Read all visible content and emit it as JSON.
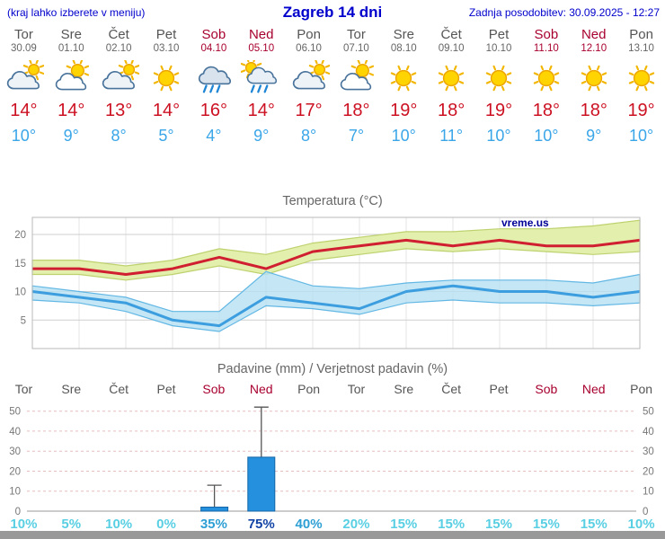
{
  "header": {
    "left_note": "(kraj lahko izberete v meniju)",
    "title": "Zagreb 14 dni",
    "updated": "Zadnja posodobitev: 30.09.2025 - 12:27"
  },
  "colors": {
    "header_blue": "#0000cc",
    "weekend_red": "#a8002e",
    "weekday_gray": "#555555",
    "tmax_red": "#cc1122",
    "tmin_blue": "#3aa6e8",
    "bar_blue": "#2590dd",
    "prob_low": "#58cfe3",
    "prob_mid": "#2e9fd4",
    "prob_high": "#1243a5"
  },
  "days": [
    {
      "name": "Tor",
      "date": "30.09",
      "weekend": false,
      "icon": "mostly-cloudy",
      "tmax": "14°",
      "tmin": "10°",
      "prob": "10%",
      "prob_level": "low"
    },
    {
      "name": "Sre",
      "date": "01.10",
      "weekend": false,
      "icon": "partly-cloudy",
      "tmax": "14°",
      "tmin": "9°",
      "prob": "5%",
      "prob_level": "low"
    },
    {
      "name": "Čet",
      "date": "02.10",
      "weekend": false,
      "icon": "mostly-cloudy",
      "tmax": "13°",
      "tmin": "8°",
      "prob": "10%",
      "prob_level": "low"
    },
    {
      "name": "Pet",
      "date": "03.10",
      "weekend": false,
      "icon": "sunny",
      "tmax": "14°",
      "tmin": "5°",
      "prob": "0%",
      "prob_level": "low"
    },
    {
      "name": "Sob",
      "date": "04.10",
      "weekend": true,
      "icon": "rain",
      "tmax": "16°",
      "tmin": "4°",
      "prob": "35%",
      "prob_level": "mid"
    },
    {
      "name": "Ned",
      "date": "05.10",
      "weekend": true,
      "icon": "sun-rain",
      "tmax": "14°",
      "tmin": "9°",
      "prob": "75%",
      "prob_level": "high"
    },
    {
      "name": "Pon",
      "date": "06.10",
      "weekend": false,
      "icon": "mostly-cloudy",
      "tmax": "17°",
      "tmin": "8°",
      "prob": "40%",
      "prob_level": "mid"
    },
    {
      "name": "Tor",
      "date": "07.10",
      "weekend": false,
      "icon": "partly-cloudy",
      "tmax": "18°",
      "tmin": "7°",
      "prob": "20%",
      "prob_level": "low"
    },
    {
      "name": "Sre",
      "date": "08.10",
      "weekend": false,
      "icon": "sunny",
      "tmax": "19°",
      "tmin": "10°",
      "prob": "15%",
      "prob_level": "low"
    },
    {
      "name": "Čet",
      "date": "09.10",
      "weekend": false,
      "icon": "sunny",
      "tmax": "18°",
      "tmin": "11°",
      "prob": "15%",
      "prob_level": "low"
    },
    {
      "name": "Pet",
      "date": "10.10",
      "weekend": false,
      "icon": "sunny",
      "tmax": "19°",
      "tmin": "10°",
      "prob": "15%",
      "prob_level": "low"
    },
    {
      "name": "Sob",
      "date": "11.10",
      "weekend": true,
      "icon": "sunny",
      "tmax": "18°",
      "tmin": "10°",
      "prob": "15%",
      "prob_level": "low"
    },
    {
      "name": "Ned",
      "date": "12.10",
      "weekend": true,
      "icon": "sunny",
      "tmax": "18°",
      "tmin": "9°",
      "prob": "15%",
      "prob_level": "low"
    },
    {
      "name": "Pon",
      "date": "13.10",
      "weekend": false,
      "icon": "sunny",
      "tmax": "19°",
      "tmin": "10°",
      "prob": "10%",
      "prob_level": "low"
    }
  ],
  "chart_data": [
    {
      "type": "line",
      "title": "Temperatura (°C)",
      "watermark": "vreme.us",
      "categories": [
        "Tor 30.09",
        "Sre 01.10",
        "Čet 02.10",
        "Pet 03.10",
        "Sob 04.10",
        "Ned 05.10",
        "Pon 06.10",
        "Tor 07.10",
        "Sre 08.10",
        "Čet 09.10",
        "Pet 10.10",
        "Sob 11.10",
        "Ned 12.10",
        "Pon 13.10"
      ],
      "ylim": [
        0,
        23
      ],
      "yticks": [
        5,
        10,
        15,
        20
      ],
      "grid": true,
      "series": [
        {
          "name": "max temperature",
          "values": [
            14,
            14,
            13,
            14,
            16,
            14,
            17,
            18,
            19,
            18,
            19,
            18,
            18,
            19
          ]
        },
        {
          "name": "max range upper",
          "values": [
            15.5,
            15.5,
            14.5,
            15.5,
            17.5,
            16.5,
            18.5,
            19.5,
            20.5,
            20.5,
            21,
            21,
            21.5,
            22.5
          ]
        },
        {
          "name": "max range lower",
          "values": [
            13,
            13,
            12,
            13,
            14.5,
            13,
            15.5,
            16.5,
            17.5,
            17,
            17.5,
            17,
            16.5,
            17
          ]
        },
        {
          "name": "min temperature",
          "values": [
            10,
            9,
            8,
            5,
            4,
            9,
            8,
            7,
            10,
            11,
            10,
            10,
            9,
            10
          ]
        },
        {
          "name": "min range upper",
          "values": [
            11,
            10,
            9,
            6.5,
            6.5,
            13.5,
            11,
            10.5,
            11.5,
            12,
            12,
            12,
            11.5,
            13
          ]
        },
        {
          "name": "min range lower",
          "values": [
            8.5,
            8,
            6.5,
            4,
            3,
            7.5,
            7,
            6,
            8,
            8.5,
            8,
            8,
            7.5,
            8
          ]
        }
      ]
    },
    {
      "type": "bar",
      "title": "Padavine (mm) / Verjetnost padavin (%)",
      "categories": [
        "Tor",
        "Sre",
        "Čet",
        "Pet",
        "Sob",
        "Ned",
        "Pon",
        "Tor",
        "Sre",
        "Čet",
        "Pet",
        "Sob",
        "Ned",
        "Pon"
      ],
      "ylim": [
        0,
        53
      ],
      "yticks": [
        0,
        10,
        20,
        30,
        40,
        50
      ],
      "precip_mm": [
        0,
        0,
        0,
        0,
        2,
        27,
        0,
        0,
        0,
        0,
        0,
        0,
        0,
        0
      ],
      "precip_max_mm": [
        0,
        0,
        0,
        0,
        13,
        52,
        0,
        0,
        0,
        0,
        0,
        0,
        0,
        0
      ],
      "probability_pct": [
        10,
        5,
        10,
        0,
        35,
        75,
        40,
        20,
        15,
        15,
        15,
        15,
        15,
        10
      ]
    }
  ]
}
